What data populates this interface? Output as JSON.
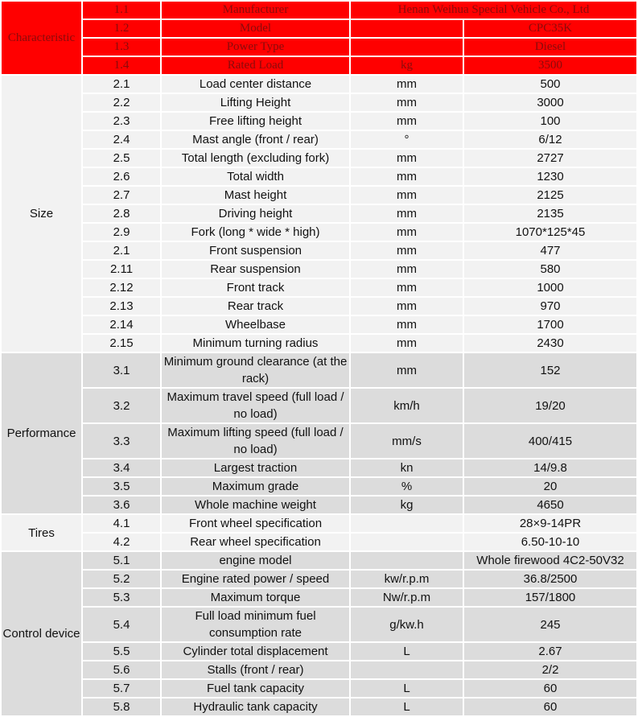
{
  "colors": {
    "header_red": "#ff0000",
    "header_text": "#8a0b0b",
    "light_bg": "#f2f2f2",
    "dark_bg": "#dcdcdc"
  },
  "sections": [
    {
      "name": "Characteristic",
      "style": "red",
      "rows": [
        {
          "no": "1.1",
          "item": "Manufacturer",
          "unit": "",
          "value": "Henan Weihua Special Vehicle Co., Ltd",
          "merge_unit": true
        },
        {
          "no": "1.2",
          "item": "Model",
          "unit": "",
          "value": "CPC35K"
        },
        {
          "no": "1.3",
          "item": "Power Type",
          "unit": "",
          "value": "Diesel"
        },
        {
          "no": "1.4",
          "item": "Rated Load",
          "unit": "kg",
          "value": "3500"
        }
      ]
    },
    {
      "name": "Size",
      "style": "light",
      "rows": [
        {
          "no": "2.1",
          "item": "Load center distance",
          "unit": "mm",
          "value": "500"
        },
        {
          "no": "2.2",
          "item": "Lifting Height",
          "unit": "mm",
          "value": "3000"
        },
        {
          "no": "2.3",
          "item": "Free lifting height",
          "unit": "mm",
          "value": "100"
        },
        {
          "no": "2.4",
          "item": "Mast angle (front / rear)",
          "unit": "°",
          "value": "6/12"
        },
        {
          "no": "2.5",
          "item": "Total length (excluding fork)",
          "unit": "mm",
          "value": "2727"
        },
        {
          "no": "2.6",
          "item": "Total width",
          "unit": "mm",
          "value": "1230"
        },
        {
          "no": "2.7",
          "item": "Mast height",
          "unit": "mm",
          "value": "2125"
        },
        {
          "no": "2.8",
          "item": "Driving height",
          "unit": "mm",
          "value": "2135"
        },
        {
          "no": "2.9",
          "item": "Fork (long * wide * high)",
          "unit": "mm",
          "value": "1070*125*45"
        },
        {
          "no": "2.1",
          "item": "Front suspension",
          "unit": "mm",
          "value": "477"
        },
        {
          "no": "2.11",
          "item": "Rear suspension",
          "unit": "mm",
          "value": "580"
        },
        {
          "no": "2.12",
          "item": "Front track",
          "unit": "mm",
          "value": "1000"
        },
        {
          "no": "2.13",
          "item": "Rear track",
          "unit": "mm",
          "value": "970"
        },
        {
          "no": "2.14",
          "item": "Wheelbase",
          "unit": "mm",
          "value": "1700"
        },
        {
          "no": "2.15",
          "item": "Minimum turning radius",
          "unit": "mm",
          "value": "2430"
        }
      ]
    },
    {
      "name": "Performance",
      "style": "dark",
      "rows": [
        {
          "no": "3.1",
          "item": "Minimum ground clearance (at the rack)",
          "unit": "mm",
          "value": "152",
          "tall": true
        },
        {
          "no": "3.2",
          "item": "Maximum travel speed (full load / no load)",
          "unit": "km/h",
          "value": "19/20",
          "tall": true
        },
        {
          "no": "3.3",
          "item": "Maximum lifting speed (full load / no load)",
          "unit": "mm/s",
          "value": "400/415",
          "tall": true
        },
        {
          "no": "3.4",
          "item": "Largest traction",
          "unit": "kn",
          "value": "14/9.8"
        },
        {
          "no": "3.5",
          "item": "Maximum grade",
          "unit": "%",
          "value": "20"
        },
        {
          "no": "3.6",
          "item": "Whole machine weight",
          "unit": "kg",
          "value": "4650"
        }
      ]
    },
    {
      "name": "Tires",
      "style": "light",
      "rows": [
        {
          "no": "4.1",
          "item": "Front wheel specification",
          "unit": "",
          "value": "28×9-14PR"
        },
        {
          "no": "4.2",
          "item": "Rear wheel specification",
          "unit": "",
          "value": "6.50-10-10"
        }
      ]
    },
    {
      "name": "Control device",
      "style": "dark",
      "rows": [
        {
          "no": "5.1",
          "item": "engine model",
          "unit": "",
          "value": "Whole firewood 4C2-50V32"
        },
        {
          "no": "5.2",
          "item": "Engine rated power / speed",
          "unit": "kw/r.p.m",
          "value": "36.8/2500"
        },
        {
          "no": "5.3",
          "item": "Maximum torque",
          "unit": "Nw/r.p.m",
          "value": "157/1800"
        },
        {
          "no": "5.4",
          "item": "Full load minimum fuel consumption rate",
          "unit": "g/kw.h",
          "value": "245",
          "tall": true
        },
        {
          "no": "5.5",
          "item": "Cylinder total displacement",
          "unit": "L",
          "value": "2.67"
        },
        {
          "no": "5.6",
          "item": "Stalls (front / rear)",
          "unit": "",
          "value": "2/2"
        },
        {
          "no": "5.7",
          "item": "Fuel tank capacity",
          "unit": "L",
          "value": "60"
        },
        {
          "no": "5.8",
          "item": "Hydraulic tank capacity",
          "unit": "L",
          "value": "60"
        }
      ]
    }
  ]
}
